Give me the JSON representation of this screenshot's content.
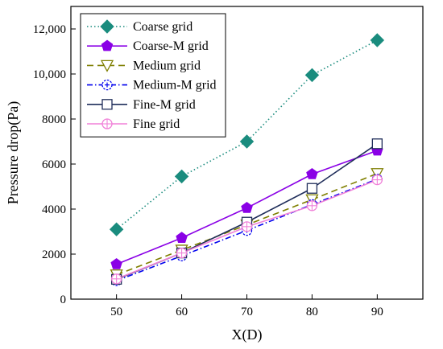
{
  "chart_data": {
    "type": "line",
    "title": "",
    "xlabel": "X(D)",
    "ylabel": "Pressure drop(Pa)",
    "x": [
      50,
      60,
      70,
      80,
      90
    ],
    "x_ticks": [
      "50",
      "60",
      "70",
      "80",
      "90"
    ],
    "xlim": [
      43,
      97
    ],
    "ylim": [
      0,
      13000
    ],
    "y_ticks": [
      0,
      2000,
      4000,
      6000,
      8000,
      10000,
      12000
    ],
    "y_tick_labels": [
      "0",
      "2000",
      "4000",
      "6000",
      "8000",
      "10,000",
      "12,000"
    ],
    "grid": false,
    "legend_position": "top-left",
    "series": [
      {
        "name": "Coarse grid",
        "color": "#1a8c7e",
        "line": "dotted",
        "marker": "diamond-filled",
        "values": [
          3100,
          5450,
          7000,
          9950,
          11500
        ]
      },
      {
        "name": "Coarse-M grid",
        "color": "#8a00e6",
        "line": "solid",
        "marker": "pentagon-filled",
        "values": [
          1550,
          2720,
          4050,
          5550,
          6600
        ]
      },
      {
        "name": "Medium grid",
        "color": "#7f7f00",
        "line": "dashed",
        "marker": "triangle-down-open",
        "values": [
          1080,
          2180,
          3300,
          4420,
          5580
        ]
      },
      {
        "name": "Medium-M grid",
        "color": "#0000ee",
        "line": "dash-dot",
        "marker": "circle-open-plus",
        "values": [
          820,
          1920,
          3050,
          4200,
          5330
        ]
      },
      {
        "name": "Fine-M grid",
        "color": "#1f2d5a",
        "line": "solid",
        "marker": "square-open",
        "values": [
          880,
          2050,
          3420,
          4920,
          6900
        ]
      },
      {
        "name": "Fine grid",
        "color": "#f080d8",
        "line": "solid",
        "marker": "circle-open-cross",
        "values": [
          900,
          2050,
          3220,
          4150,
          5300
        ]
      }
    ]
  }
}
